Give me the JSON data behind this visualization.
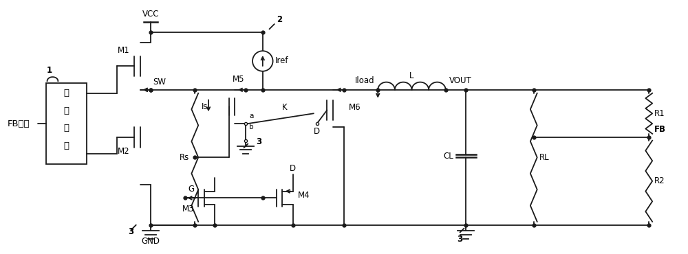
{
  "bg_color": "#ffffff",
  "line_color": "#1a1a1a",
  "line_width": 1.3,
  "font_size": 8.5,
  "fig_width": 10.0,
  "fig_height": 3.7,
  "labels": {
    "FB_signal": "FB信号",
    "logic_block": [
      "逻",
      "辑",
      "控",
      "制"
    ],
    "VCC": "VCC",
    "GND": "GND",
    "SW": "SW",
    "M1": "M1",
    "M2": "M2",
    "M3": "M3",
    "M4": "M4",
    "M5": "M5",
    "M6": "M6",
    "Rs": "Rs",
    "Is": "Is",
    "Iref": "Iref",
    "L": "L",
    "CL": "CL",
    "RL": "RL",
    "R1": "R1",
    "R2": "R2",
    "FB": "FB",
    "VOUT": "VOUT",
    "Iload": "Iload",
    "K": "K",
    "G": "G",
    "D": "D",
    "a": "a",
    "b": "b",
    "pin1": "1",
    "pin2": "2",
    "pin3_left": "3",
    "pin3_mid": "3",
    "pin3_right": "3"
  }
}
